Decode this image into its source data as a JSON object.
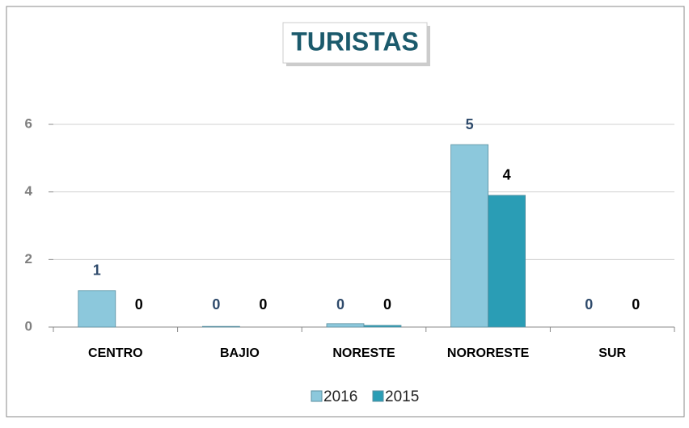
{
  "chart_data": {
    "type": "bar",
    "title": "TURISTAS",
    "categories": [
      "CENTRO",
      "BAJIO",
      "NORESTE",
      "NORORESTE",
      "SUR"
    ],
    "series": [
      {
        "name": "2016",
        "color": "#8cc8dc",
        "label_color": "#2e4a6b",
        "values": [
          1.08,
          0.02,
          0.1,
          5.4,
          0
        ],
        "value_labels": [
          "1",
          "0",
          "0",
          "5",
          "0"
        ]
      },
      {
        "name": "2015",
        "color": "#2a9db5",
        "label_color": "#000000",
        "values": [
          0,
          0,
          0.05,
          3.9,
          0
        ],
        "value_labels": [
          "0",
          "0",
          "0",
          "4",
          "0"
        ]
      }
    ],
    "ylim": [
      0,
      6
    ],
    "yticks": [
      0,
      2,
      4,
      6
    ],
    "grid": true,
    "legend": "bottom"
  }
}
